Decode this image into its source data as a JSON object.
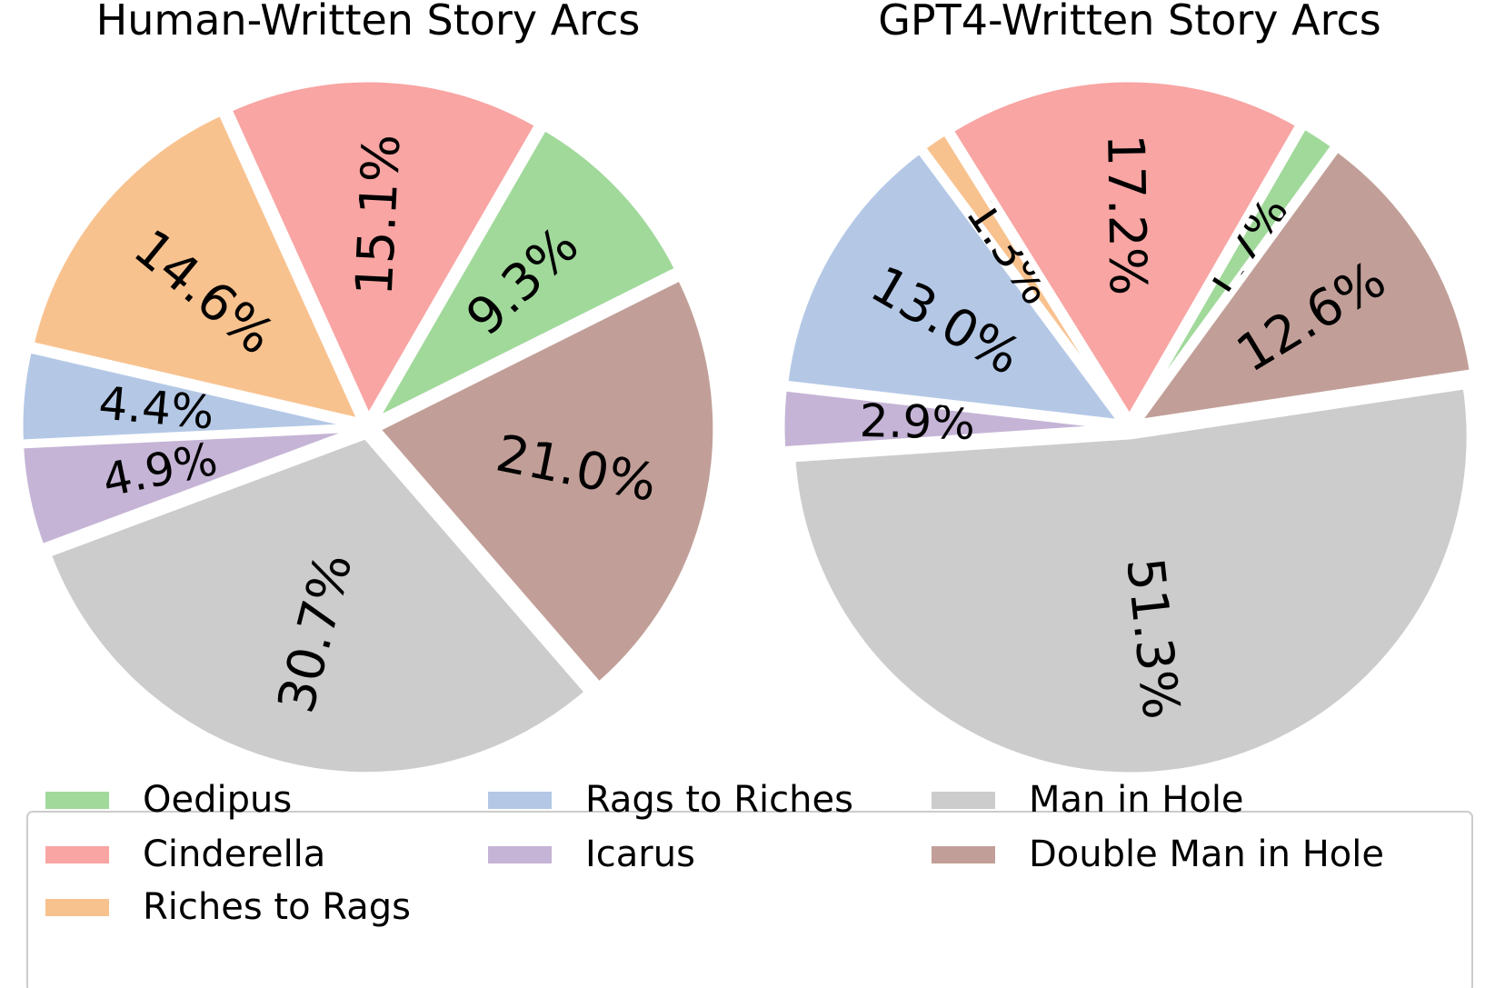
{
  "chart_data": [
    {
      "type": "pie",
      "title": "Human-Written Story Arcs",
      "categories": [
        "Oedipus",
        "Double Man in Hole",
        "Man in Hole",
        "Icarus",
        "Rags to Riches",
        "Riches to Rags",
        "Cinderella"
      ],
      "values": [
        9.3,
        21.0,
        30.7,
        4.9,
        4.4,
        14.6,
        15.1
      ],
      "labels": [
        "9.3%",
        "21.0%",
        "30.7%",
        "4.9%",
        "4.4%",
        "14.6%",
        "15.1%"
      ]
    },
    {
      "type": "pie",
      "title": "GPT4-Written Story Arcs",
      "categories": [
        "Oedipus",
        "Double Man in Hole",
        "Man in Hole",
        "Icarus",
        "Rags to Riches",
        "Riches to Rags",
        "Cinderella"
      ],
      "values": [
        1.7,
        12.6,
        51.3,
        2.9,
        13.0,
        1.3,
        17.2
      ],
      "labels": [
        "1.7%",
        "12.6%",
        "51.3%",
        "2.9%",
        "13.0%",
        "1.3%",
        "17.2%"
      ]
    }
  ],
  "colors": {
    "Oedipus": "#a1d99b",
    "Cinderella": "#f8a5a3",
    "Riches to Rags": "#f8c28f",
    "Rags to Riches": "#b4c8e6",
    "Icarus": "#c5b4d6",
    "Man in Hole": "#cccccc",
    "Double Man in Hole": "#c19f98"
  },
  "legend": {
    "placement": "bottom",
    "columns": [
      [
        "Oedipus",
        "Cinderella",
        "Riches to Rags"
      ],
      [
        "Rags to Riches",
        "Icarus"
      ],
      [
        "Man in Hole",
        "Double Man in Hole"
      ]
    ]
  }
}
